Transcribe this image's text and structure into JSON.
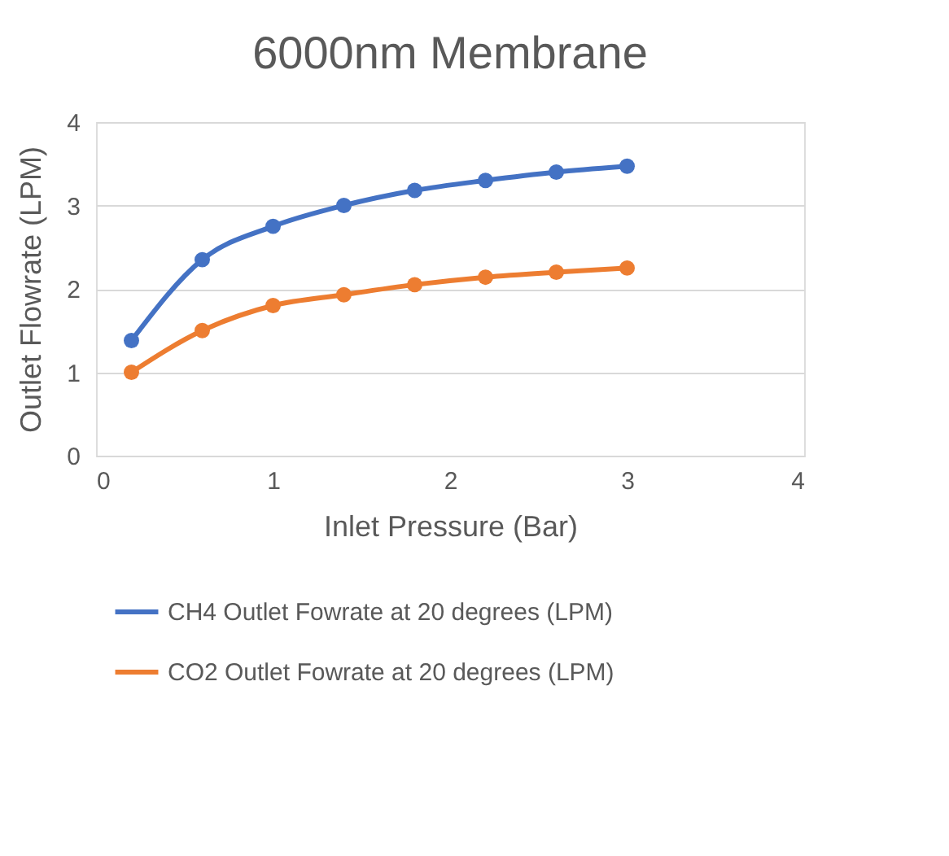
{
  "chart_data": {
    "type": "line",
    "title": "6000nm Membrane",
    "xlabel": "Inlet Pressure (Bar)",
    "ylabel": "Outlet Flowrate (LPM)",
    "x": [
      0.2,
      0.6,
      1.0,
      1.4,
      1.8,
      2.2,
      2.6,
      3.0
    ],
    "series": [
      {
        "name": "CH4 Outlet Fowrate at 20 degrees (LPM)",
        "color": "#4472c4",
        "values": [
          1.38,
          2.35,
          2.75,
          3.0,
          3.18,
          3.3,
          3.4,
          3.47
        ]
      },
      {
        "name": "CO2 Outlet Fowrate at 20 degrees (LPM)",
        "color": "#ed7d31",
        "values": [
          1.0,
          1.5,
          1.8,
          1.93,
          2.05,
          2.14,
          2.2,
          2.25
        ]
      }
    ],
    "xlim": [
      0,
      4
    ],
    "xticks": [
      0,
      1,
      2,
      3,
      4
    ],
    "ylim": [
      0,
      4
    ],
    "yticks": [
      0,
      1,
      2,
      3,
      4
    ],
    "grid": "y",
    "legend": "bottom",
    "marker": "circle",
    "line_style": "solid"
  }
}
